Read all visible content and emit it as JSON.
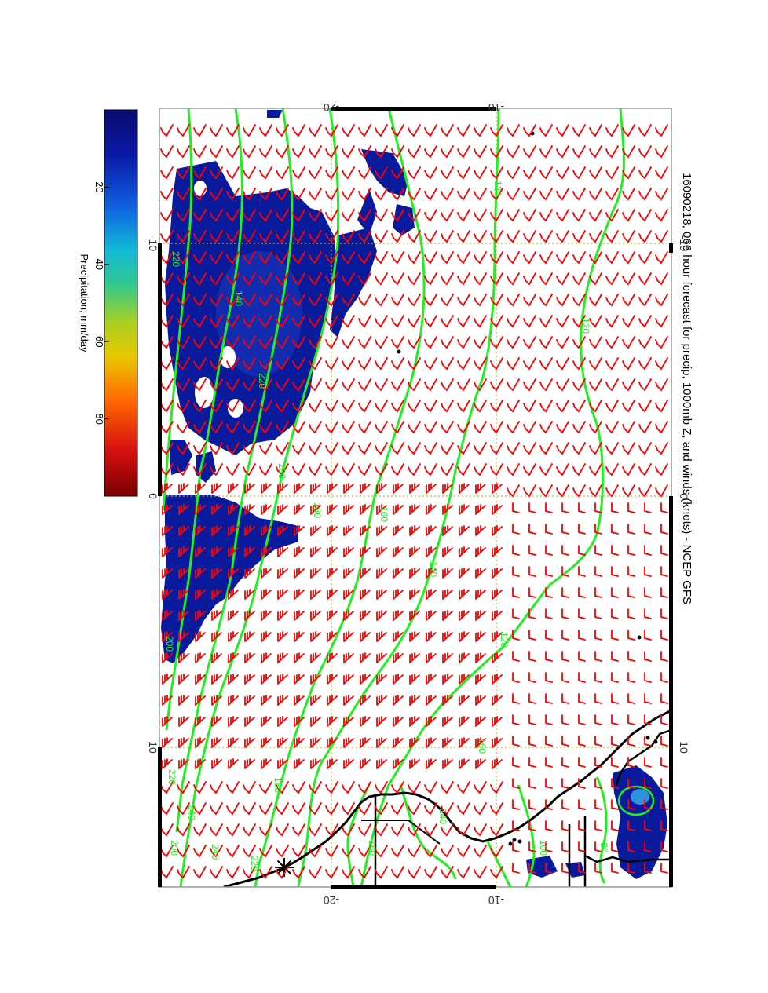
{
  "title": "16090218, 066 hour forecast for precip, 1000mb Z, and winds (knots) - NCEP GFS",
  "colorbar": {
    "label": "Precipitation, mm/day",
    "tick_labels": [
      "20",
      "40",
      "60",
      "80"
    ],
    "tick_values": [
      20,
      40,
      60,
      80
    ],
    "range": [
      0,
      100
    ],
    "colors": [
      "#7a0000",
      "#d81010",
      "#ff6a00",
      "#e8c800",
      "#a8d020",
      "#30c890",
      "#10b8d8",
      "#1060e0",
      "#0a1aa8",
      "#0a0a70"
    ]
  },
  "map": {
    "frame_color": "#000000",
    "grid_color": "#d9a520",
    "wind_barb_color": "#ff0000",
    "height_contour_color": "#22ee22",
    "coastline_color": "#000000",
    "precip_color": "#0a1a9c",
    "lon_tick_labels": [
      "-10",
      "0",
      "10"
    ],
    "lat_tick_labels": [
      "-20",
      "-10"
    ],
    "contour_labels": [
      "120",
      "120",
      "120",
      "140",
      "140",
      "160",
      "180",
      "180",
      "200",
      "200",
      "200",
      "220",
      "220",
      "220",
      "240",
      "240",
      "220",
      "160",
      "80",
      "100",
      "140",
      "160"
    ]
  }
}
